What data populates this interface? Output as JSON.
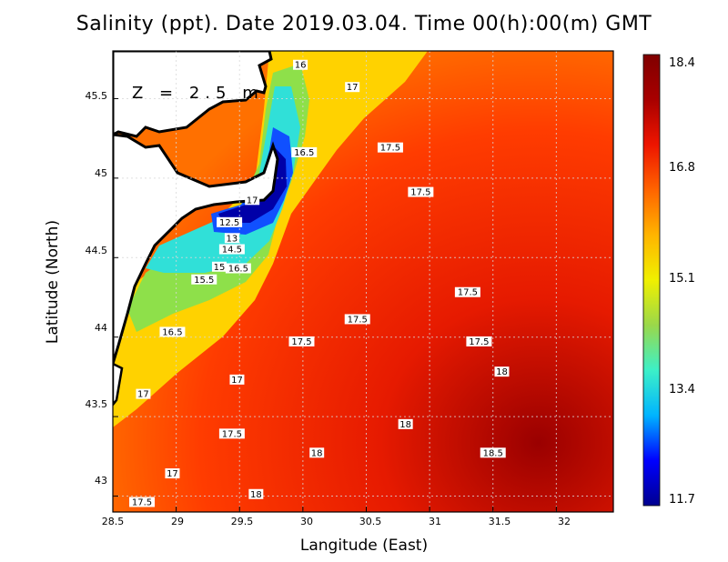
{
  "title": "Salinity (ppt). Date 2019.03.04. Time 00(h):00(m) GMT",
  "depth_label": "Z = 2.5 m",
  "x_axis": {
    "label": "Langitude (East)",
    "ticks": [
      "28.5",
      "29",
      "29.5",
      "30",
      "30.5",
      "31",
      "31.5",
      "32"
    ],
    "range": [
      28.5,
      32.45
    ]
  },
  "y_axis": {
    "label": "Latitude (North)",
    "ticks": [
      "43",
      "43.5",
      "44",
      "44.5",
      "45",
      "45.5"
    ],
    "range": [
      42.9,
      45.8
    ]
  },
  "colorbar": {
    "ticks": [
      "18.4",
      "16.8",
      "15.1",
      "13.4",
      "11.7"
    ],
    "range": [
      11.7,
      18.4
    ],
    "colors": [
      "#00008f",
      "#0000ff",
      "#00b4ff",
      "#3cf0c8",
      "#9ad84a",
      "#f0f000",
      "#ffb400",
      "#ff6400",
      "#ee1500",
      "#a80000",
      "#800000"
    ]
  },
  "land_color": "#ffffff",
  "coast_color": "#000000",
  "contour_labels": [
    {
      "text": "16",
      "lon": 29.98,
      "lat": 45.71
    },
    {
      "text": "17",
      "lon": 30.39,
      "lat": 45.57
    },
    {
      "text": "17.5",
      "lon": 30.69,
      "lat": 45.19
    },
    {
      "text": "16.5",
      "lon": 30.01,
      "lat": 45.16
    },
    {
      "text": "17.5",
      "lon": 30.93,
      "lat": 44.91
    },
    {
      "text": "17",
      "lon": 29.6,
      "lat": 44.86
    },
    {
      "text": "12.5",
      "lon": 29.42,
      "lat": 44.72
    },
    {
      "text": "13",
      "lon": 29.44,
      "lat": 44.62
    },
    {
      "text": "14.5",
      "lon": 29.44,
      "lat": 44.55
    },
    {
      "text": "15",
      "lon": 29.34,
      "lat": 44.44
    },
    {
      "text": "16.5",
      "lon": 29.49,
      "lat": 44.43
    },
    {
      "text": "15.5",
      "lon": 29.22,
      "lat": 44.36
    },
    {
      "text": "17.5",
      "lon": 31.3,
      "lat": 44.28
    },
    {
      "text": "17.5",
      "lon": 30.43,
      "lat": 44.11
    },
    {
      "text": "16.5",
      "lon": 28.97,
      "lat": 44.03
    },
    {
      "text": "17.5",
      "lon": 29.99,
      "lat": 43.97
    },
    {
      "text": "17.5",
      "lon": 31.39,
      "lat": 43.97
    },
    {
      "text": "17",
      "lon": 29.48,
      "lat": 43.73
    },
    {
      "text": "18",
      "lon": 31.57,
      "lat": 43.78
    },
    {
      "text": "17",
      "lon": 28.74,
      "lat": 43.64
    },
    {
      "text": "18",
      "lon": 30.81,
      "lat": 43.45
    },
    {
      "text": "17.5",
      "lon": 29.44,
      "lat": 43.39
    },
    {
      "text": "18",
      "lon": 30.11,
      "lat": 43.27
    },
    {
      "text": "18.5",
      "lon": 31.5,
      "lat": 43.27
    },
    {
      "text": "17",
      "lon": 28.97,
      "lat": 43.14
    },
    {
      "text": "18",
      "lon": 29.63,
      "lat": 43.01
    },
    {
      "text": "17.5",
      "lon": 28.73,
      "lat": 42.96
    }
  ]
}
